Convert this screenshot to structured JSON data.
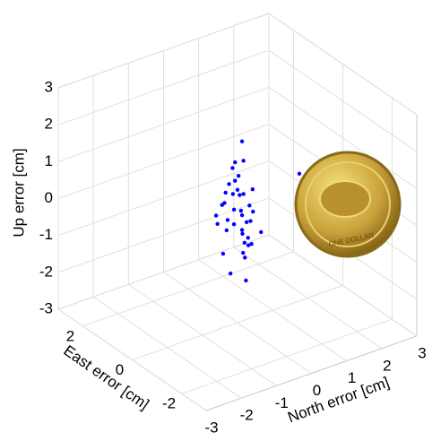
{
  "chart_data": {
    "type": "scatter3d",
    "xlabel": "North error [cm]",
    "ylabel": "East error [cm]",
    "zlabel": "Up error [cm]",
    "x": [
      0.1,
      -0.2,
      0.3,
      0.0,
      -0.1,
      0.2,
      0.4,
      -0.3,
      0.1,
      0.0,
      0.2,
      -0.2,
      0.3,
      -0.1,
      0.0,
      0.5,
      -0.4,
      0.1,
      0.2,
      -0.1,
      0.0,
      0.3,
      -0.2,
      0.1,
      0.6,
      -0.3,
      0.0,
      0.2,
      -0.1,
      0.4,
      0.1,
      -0.2,
      0.0,
      0.3,
      1.2,
      0.2,
      -0.5,
      0.1,
      0.0,
      0.2
    ],
    "y": [
      0.0,
      0.2,
      -0.1,
      0.1,
      0.3,
      -0.2,
      0.0,
      0.1,
      -0.3,
      0.2,
      0.1,
      -0.1,
      0.2,
      0.0,
      -0.2,
      0.1,
      0.3,
      -0.1,
      0.0,
      0.2,
      0.4,
      -0.2,
      0.0,
      0.1,
      -0.1,
      0.2,
      -0.3,
      0.1,
      0.0,
      0.2,
      -0.1,
      0.3,
      0.1,
      0.0,
      -0.8,
      0.2,
      0.1,
      -0.2,
      0.0,
      0.1
    ],
    "z": [
      0.0,
      0.5,
      -0.3,
      0.8,
      -0.6,
      0.2,
      -1.0,
      0.3,
      -0.8,
      1.1,
      -0.2,
      0.6,
      -1.3,
      0.1,
      -0.5,
      0.4,
      -0.1,
      1.4,
      -0.9,
      0.7,
      -0.4,
      0.0,
      -1.6,
      0.9,
      -0.7,
      0.2,
      -1.1,
      1.8,
      -0.3,
      -0.5,
      0.5,
      -1.2,
      1.3,
      -0.8,
      1.0,
      0.3,
      -0.2,
      -1.8,
      0.6,
      -0.6
    ],
    "color": "#0000ff",
    "xlim": [
      -3,
      3
    ],
    "ylim": [
      -3,
      3
    ],
    "zlim": [
      -3,
      3
    ],
    "xticks": [
      -3,
      -2,
      -1,
      0,
      1,
      2,
      3
    ],
    "yticks": [
      -2,
      0,
      2
    ],
    "zticks": [
      -3,
      -2,
      -1,
      0,
      1,
      2,
      3
    ],
    "grid": true,
    "annotations": [
      "ONE DOLLAR"
    ]
  }
}
